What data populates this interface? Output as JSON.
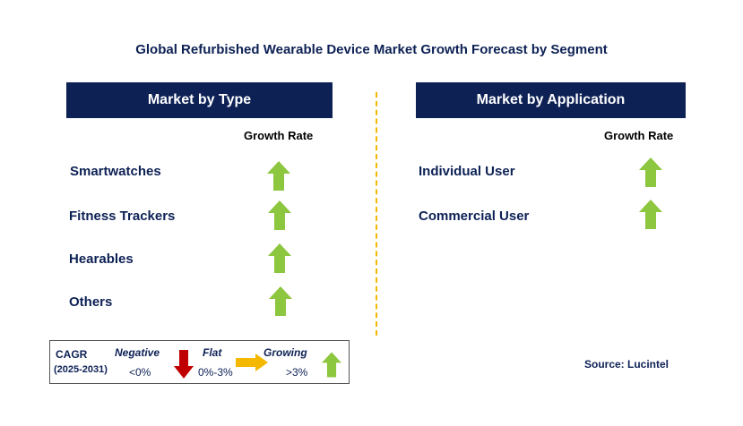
{
  "title": "Global Refurbished Wearable Device Market Growth Forecast by Segment",
  "colors": {
    "header_bg": "#0d2155",
    "text_navy": "#0d2155",
    "growing_green": "#8dc63f",
    "negative_red": "#c00000",
    "flat_yellow": "#f5b800",
    "divider": "#f5b800"
  },
  "left_panel": {
    "header": "Market by Type",
    "column_label": "Growth Rate",
    "segments": [
      {
        "label": "Smartwatches",
        "trend": "growing",
        "icon": "up-arrow-green"
      },
      {
        "label": "Fitness Trackers",
        "trend": "growing",
        "icon": "up-arrow-green"
      },
      {
        "label": "Hearables",
        "trend": "growing",
        "icon": "up-arrow-green"
      },
      {
        "label": "Others",
        "trend": "growing",
        "icon": "up-arrow-green"
      }
    ]
  },
  "right_panel": {
    "header": "Market by Application",
    "column_label": "Growth Rate",
    "segments": [
      {
        "label": "Individual User",
        "trend": "growing",
        "icon": "up-arrow-green"
      },
      {
        "label": "Commercial User",
        "trend": "growing",
        "icon": "up-arrow-green"
      }
    ]
  },
  "legend": {
    "cagr_label": "CAGR",
    "period": "(2025-2031)",
    "negative": {
      "label": "Negative",
      "range": "<0%",
      "icon": "down-arrow-red"
    },
    "flat": {
      "label": "Flat",
      "range": "0%-3%",
      "icon": "right-arrow-yellow"
    },
    "growing": {
      "label": "Growing",
      "range": ">3%",
      "icon": "up-arrow-green"
    }
  },
  "source": "Source: Lucintel"
}
